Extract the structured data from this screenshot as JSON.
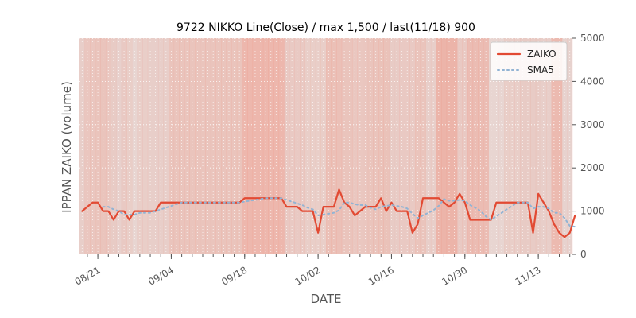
{
  "chart_data": {
    "type": "line",
    "title": "9722 NIKKO Line(Close) / max 1,500 / last(11/18) 900",
    "xlabel": "DATE",
    "ylabel": "IPPAN ZAIKO (volume)",
    "ylim": [
      0,
      5000
    ],
    "y_ticks": [
      0,
      1000,
      2000,
      3000,
      4000,
      5000
    ],
    "x_ticks": [
      "08/21",
      "09/04",
      "09/18",
      "10/02",
      "10/16",
      "10/30",
      "11/13"
    ],
    "x_tick_index": [
      3,
      17,
      31,
      45,
      59,
      73,
      87
    ],
    "x_count": 94,
    "grid": true,
    "legend_position": "top-right",
    "colors": {
      "zaiko": "#e24a33",
      "sma5": "#92b4d4",
      "band": "#f0a090",
      "plot_bg": "#e5e5e5",
      "grid": "#ffffff"
    },
    "background_intensity": [
      0.3,
      0.55,
      0.55,
      0.6,
      0.6,
      0.5,
      0.4,
      0.25,
      0.45,
      0.35,
      0.15,
      0.35,
      0.35,
      0.3,
      0.3,
      0.3,
      0.3,
      0.6,
      0.6,
      0.6,
      0.6,
      0.6,
      0.6,
      0.6,
      0.6,
      0.6,
      0.6,
      0.6,
      0.6,
      0.6,
      0.6,
      0.95,
      0.95,
      0.95,
      0.95,
      0.95,
      0.95,
      0.95,
      0.95,
      0.45,
      0.45,
      0.45,
      0.45,
      0.35,
      0.35,
      0.35,
      0.35,
      0.7,
      0.7,
      0.7,
      0.6,
      0.6,
      0.5,
      0.5,
      0.55,
      0.6,
      0.6,
      0.65,
      0.65,
      0.4,
      0.4,
      0.45,
      0.45,
      0.45,
      0.6,
      0.6,
      0.3,
      0.3,
      1.0,
      1.0,
      1.0,
      1.0,
      0.45,
      0.45,
      0.8,
      0.8,
      0.8,
      0.8,
      0.15,
      0.15,
      0.15,
      0.35,
      0.35,
      0.35,
      0.4,
      0.4,
      0.4,
      0.4,
      0.3,
      0.3,
      0.85,
      0.85,
      0.2,
      0.2
    ],
    "series": [
      {
        "name": "ZAIKO",
        "style": "solid",
        "values": [
          1000,
          1100,
          1200,
          1200,
          1000,
          1000,
          800,
          1000,
          1000,
          800,
          1000,
          1000,
          1000,
          1000,
          1000,
          1200,
          1200,
          1200,
          1200,
          1200,
          1200,
          1200,
          1200,
          1200,
          1200,
          1200,
          1200,
          1200,
          1200,
          1200,
          1200,
          1300,
          1300,
          1300,
          1300,
          1300,
          1300,
          1300,
          1300,
          1100,
          1100,
          1100,
          1000,
          1000,
          1000,
          500,
          1100,
          1100,
          1100,
          1500,
          1200,
          1100,
          900,
          1000,
          1100,
          1100,
          1100,
          1300,
          1000,
          1200,
          1000,
          1000,
          1000,
          500,
          700,
          1300,
          1300,
          1300,
          1300,
          1200,
          1100,
          1200,
          1400,
          1200,
          800,
          800,
          800,
          800,
          800,
          1200,
          1200,
          1200,
          1200,
          1200,
          1200,
          1200,
          500,
          1400,
          1200,
          1000,
          700,
          500,
          400,
          500,
          900
        ]
      },
      {
        "name": "SMA5",
        "style": "dotted",
        "values": [
          null,
          null,
          null,
          null,
          1100,
          1100,
          1040,
          1000,
          920,
          920,
          920,
          960,
          960,
          960,
          1000,
          1040,
          1080,
          1120,
          1160,
          1200,
          1200,
          1200,
          1200,
          1200,
          1200,
          1200,
          1200,
          1200,
          1200,
          1200,
          1200,
          1220,
          1240,
          1260,
          1280,
          1300,
          1300,
          1300,
          1300,
          1260,
          1220,
          1180,
          1140,
          1080,
          1040,
          900,
          920,
          940,
          960,
          1020,
          1200,
          1200,
          1160,
          1140,
          1140,
          1080,
          1040,
          1100,
          1120,
          1140,
          1120,
          1100,
          1060,
          940,
          840,
          900,
          960,
          1020,
          1120,
          1280,
          1240,
          1240,
          1260,
          1240,
          1140,
          1080,
          1000,
          880,
          800,
          880,
          960,
          1040,
          1120,
          1200,
          1200,
          1200,
          1060,
          1100,
          1100,
          1060,
          960,
          960,
          840,
          660,
          640
        ]
      }
    ]
  }
}
